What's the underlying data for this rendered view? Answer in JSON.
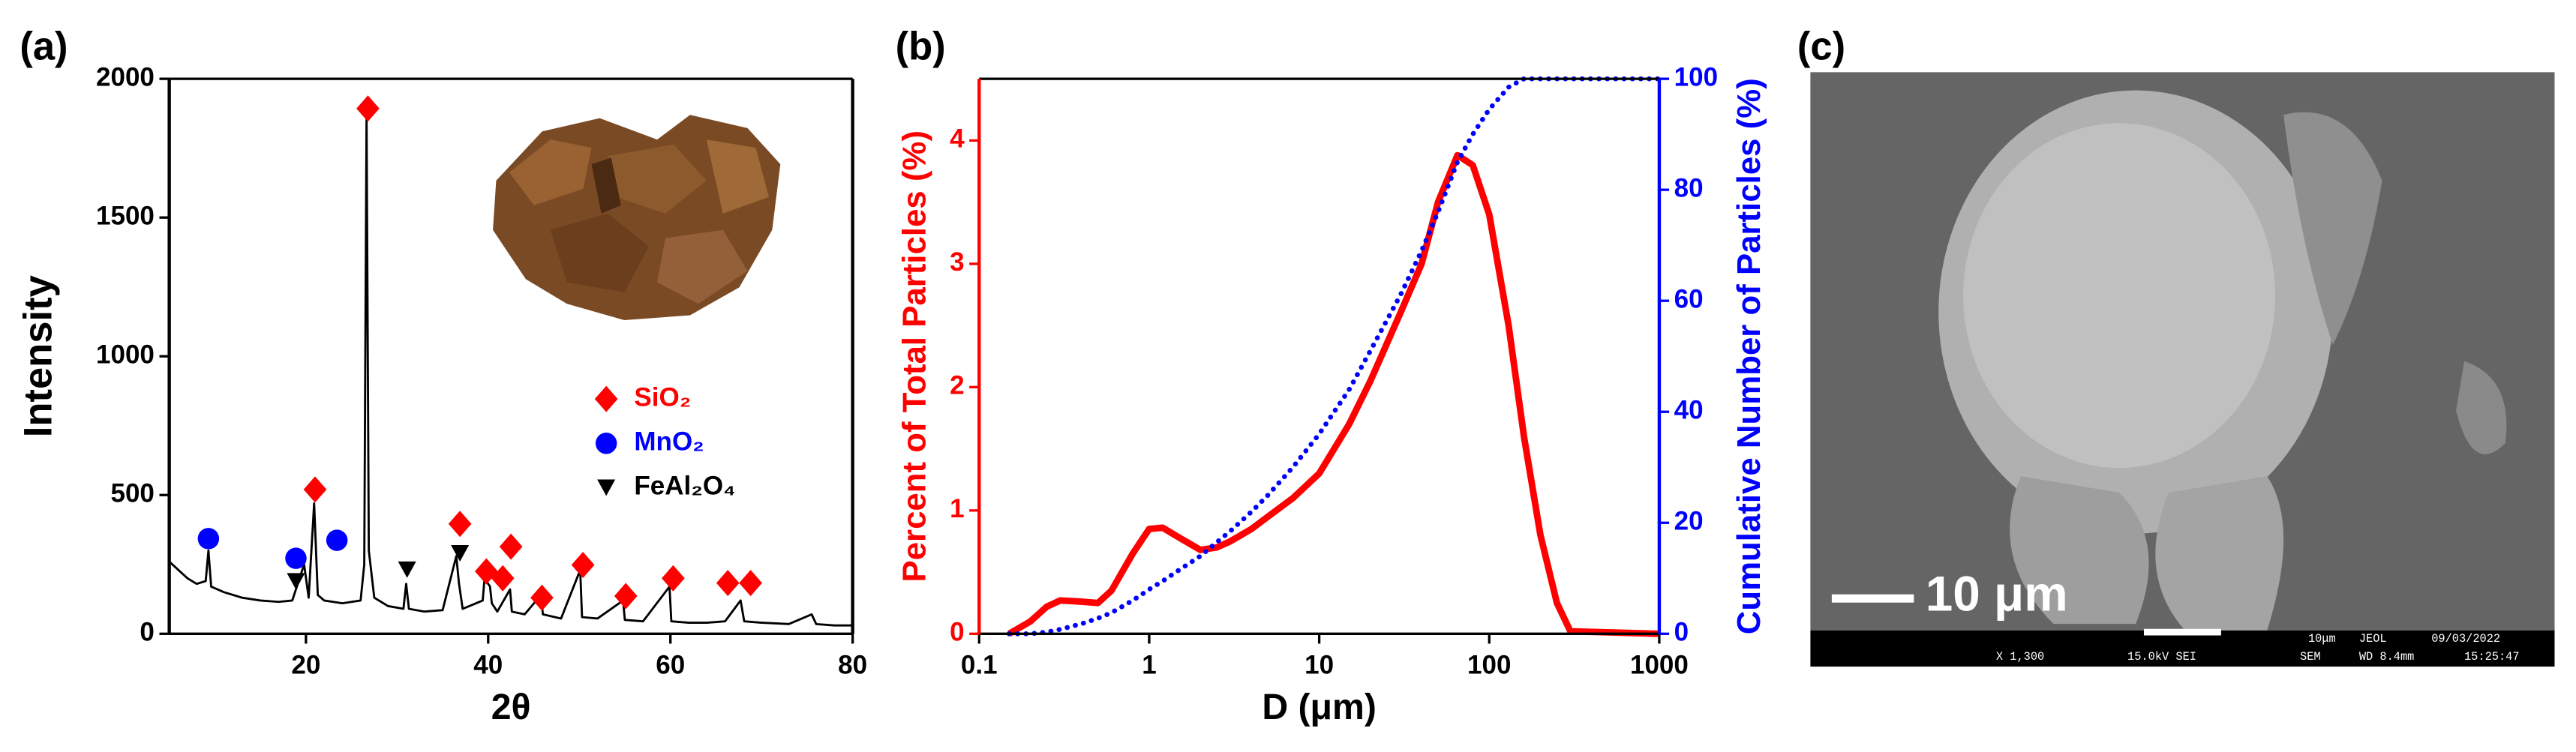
{
  "chart_data": [
    {
      "type": "line",
      "panel": "(a)",
      "xlabel": "2θ",
      "ylabel": "Intensity",
      "xlim": [
        5,
        80
      ],
      "xticks": [
        20,
        40,
        60,
        80
      ],
      "ylim": [
        0,
        2000
      ],
      "yticks": [
        0,
        500,
        1000,
        1500,
        2000
      ],
      "x": [
        5,
        6,
        7,
        8,
        9,
        9.3,
        9.6,
        11,
        12,
        13,
        15,
        17,
        18.5,
        19.8,
        20.3,
        20.9,
        21.3,
        22,
        24,
        26,
        26.4,
        26.65,
        26.9,
        27.5,
        29,
        30.7,
        31,
        31.3,
        33,
        35,
        36.5,
        36.8,
        37.2,
        39.4,
        39.6,
        40.2,
        40.4,
        41,
        42.4,
        42.6,
        44,
        45.8,
        46,
        48,
        50.1,
        50.3,
        52,
        54.8,
        55,
        57,
        59.9,
        60.1,
        62,
        64,
        66,
        67.7,
        68.1,
        70,
        73,
        75.5,
        76,
        78,
        80
      ],
      "series": [
        {
          "color": "#000000",
          "values": [
            260,
            230,
            200,
            180,
            190,
            300,
            170,
            150,
            140,
            130,
            120,
            115,
            120,
            250,
            130,
            470,
            140,
            120,
            110,
            120,
            250,
            1870,
            300,
            130,
            100,
            90,
            180,
            90,
            80,
            85,
            280,
            180,
            90,
            120,
            200,
            170,
            110,
            80,
            160,
            80,
            70,
            140,
            70,
            55,
            230,
            60,
            55,
            120,
            50,
            45,
            170,
            45,
            40,
            40,
            45,
            120,
            45,
            40,
            35,
            70,
            35,
            30,
            30
          ]
        }
      ],
      "markers": [
        {
          "name": "SiO₂",
          "color": "#ff0000",
          "shape": "diamond",
          "x": [
            21.0,
            26.8,
            36.9,
            39.8,
            41.6,
            42.5,
            45.9,
            50.4,
            55.1,
            60.3,
            66.3,
            68.8
          ],
          "y": [
            520,
            1893,
            396,
            225,
            200,
            314,
            130,
            248,
            136,
            200,
            183,
            183
          ]
        },
        {
          "name": "MnO₂",
          "color": "#0000ff",
          "shape": "circle",
          "x": [
            9.3,
            18.9,
            23.4
          ],
          "y": [
            343,
            272,
            337
          ]
        },
        {
          "name": "FeAl₂O₄",
          "color": "#000000",
          "shape": "triangle",
          "x": [
            18.9,
            31.1,
            36.9
          ],
          "y": [
            189,
            231,
            290
          ]
        }
      ],
      "legend": "right"
    },
    {
      "type": "line",
      "panel": "(b)",
      "xlabel": "D (μm)",
      "ylabel": "Percent of Total Particles (%)",
      "y2label": "Cumulative Number of Particles (%)",
      "log_x": true,
      "xlim": [
        0.1,
        1000
      ],
      "xticks": [
        0.1,
        1,
        10,
        100,
        1000
      ],
      "ylim": [
        0,
        4.5
      ],
      "yticks": [
        0,
        1,
        2,
        3,
        4
      ],
      "y2lim": [
        0,
        100
      ],
      "y2ticks": [
        0,
        20,
        40,
        60,
        80,
        100
      ],
      "x": [
        0.15,
        0.2,
        0.25,
        0.3,
        0.4,
        0.5,
        0.6,
        0.8,
        1,
        1.2,
        1.5,
        2,
        2.5,
        3,
        4,
        5,
        7,
        10,
        15,
        20,
        30,
        40,
        50,
        65,
        80,
        100,
        130,
        160,
        200,
        250,
        300,
        1000
      ],
      "series": [
        {
          "color": "#ff0000",
          "values": [
            0,
            0.1,
            0.22,
            0.27,
            0.26,
            0.25,
            0.35,
            0.65,
            0.85,
            0.86,
            0.78,
            0.68,
            0.7,
            0.75,
            0.85,
            0.95,
            1.1,
            1.3,
            1.7,
            2.05,
            2.6,
            3.0,
            3.5,
            3.88,
            3.8,
            3.4,
            2.5,
            1.6,
            0.8,
            0.25,
            0.02,
            0
          ]
        },
        {
          "color": "#0000ff",
          "axis": "y2",
          "dash": "dotted",
          "values": [
            0,
            0,
            0.3,
            0.8,
            1.8,
            2.8,
            3.8,
            6,
            8,
            9.5,
            11.5,
            14,
            16.5,
            18.5,
            22,
            25,
            30,
            36,
            44,
            51,
            61,
            69,
            76,
            85,
            90,
            94.5,
            98.5,
            100,
            100,
            100,
            100,
            100
          ]
        }
      ]
    }
  ],
  "image_panel": {
    "panel": "(c)",
    "scale_bar": "10 μm",
    "info": [
      "10μm",
      "JEOL",
      "09/03/2022",
      "X 1,300",
      "15.0kV SEI",
      "SEM",
      "WD 8.4mm",
      "15:25:47"
    ]
  }
}
